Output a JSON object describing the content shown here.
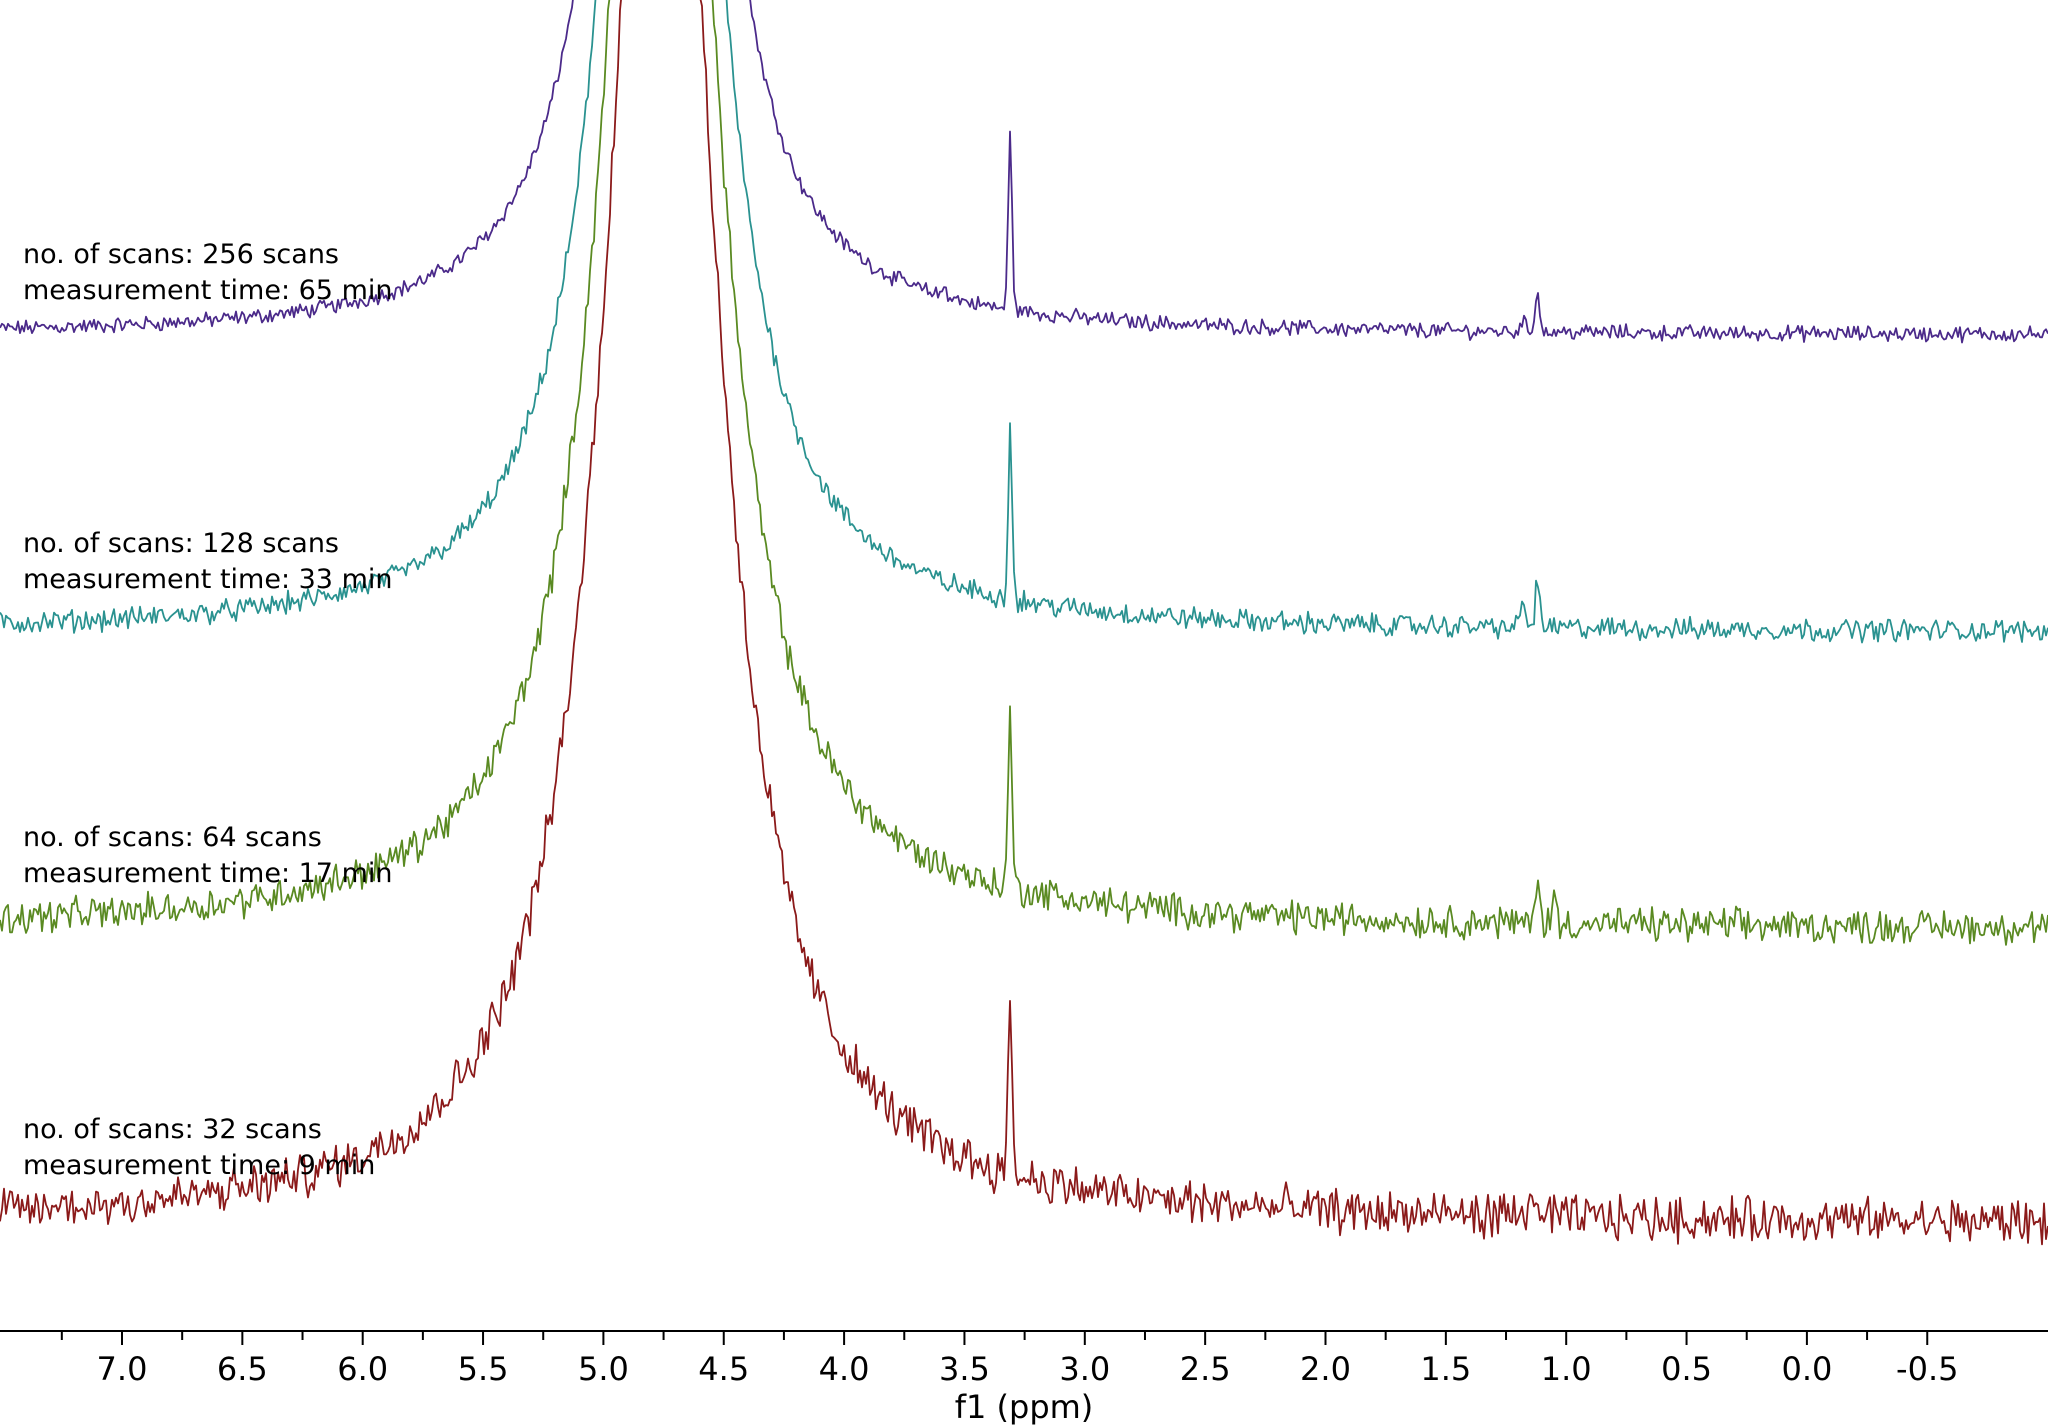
{
  "chart_data": {
    "type": "line",
    "title": "",
    "xlabel": "f1 (ppm)",
    "ylabel": "",
    "x_reversed": true,
    "xlim": [
      7.5,
      -1.0
    ],
    "x_ticks": [
      7.0,
      6.5,
      6.0,
      5.5,
      5.0,
      4.5,
      4.0,
      3.5,
      3.0,
      2.5,
      2.0,
      1.5,
      1.0,
      0.5,
      0.0,
      -0.5
    ],
    "x_tick_labels": [
      "7.0",
      "6.5",
      "6.0",
      "5.5",
      "5.0",
      "4.5",
      "4.0",
      "3.5",
      "3.0",
      "2.5",
      "2.0",
      "1.5",
      "1.0",
      "0.5",
      "0.0",
      "-0.5"
    ],
    "grid": false,
    "legend": "none",
    "stacked_spectra": true,
    "series": [
      {
        "scans_label": "no. of scans: 256 scans",
        "time_label": "measurement time: 65 min",
        "color": "#4b2a8a",
        "noise_level": 0.035,
        "peaks": [
          {
            "ppm": 4.76,
            "height": "off-scale"
          },
          {
            "ppm": 3.31,
            "height": 1.0
          },
          {
            "ppm": 1.12,
            "height": 0.27
          },
          {
            "ppm": 1.18,
            "height": 0.08
          },
          {
            "ppm": 3.58,
            "height": 0.06
          }
        ]
      },
      {
        "scans_label": "no. of scans: 128 scans",
        "time_label": "measurement time: 33 min",
        "color": "#2a9290",
        "noise_level": 0.05,
        "peaks": [
          {
            "ppm": 4.76,
            "height": "off-scale"
          },
          {
            "ppm": 3.31,
            "height": 1.0
          },
          {
            "ppm": 1.12,
            "height": 0.3
          },
          {
            "ppm": 1.18,
            "height": 0.18
          }
        ]
      },
      {
        "scans_label": "no. of scans: 64 scans",
        "time_label": "measurement time: 17 min",
        "color": "#5a8a22",
        "noise_level": 0.075,
        "peaks": [
          {
            "ppm": 4.76,
            "height": "off-scale"
          },
          {
            "ppm": 3.31,
            "height": 1.0
          },
          {
            "ppm": 1.12,
            "height": 0.3
          },
          {
            "ppm": 1.05,
            "height": 0.15
          }
        ]
      },
      {
        "scans_label": "no. of scans: 32 scans",
        "time_label": "measurement time: 9 min",
        "color": "#8b1a1a",
        "noise_level": 0.1,
        "peaks": [
          {
            "ppm": 4.76,
            "height": "off-scale"
          },
          {
            "ppm": 3.31,
            "height": 1.0
          },
          {
            "ppm": 1.15,
            "height": 0.2
          }
        ]
      }
    ]
  }
}
